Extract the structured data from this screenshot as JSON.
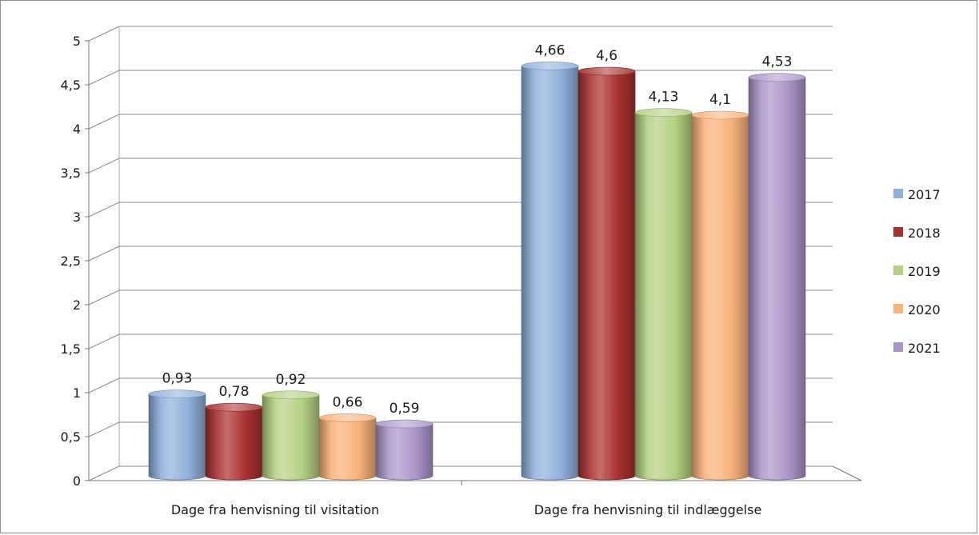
{
  "chart_data": {
    "type": "bar",
    "title": "",
    "xlabel": "",
    "ylabel": "",
    "categories": [
      "Dage fra henvisning til visitation",
      "Dage fra henvisning til indlæggelse"
    ],
    "series": [
      {
        "name": "2017",
        "values": [
          0.93,
          4.66
        ],
        "labels": [
          "0,93",
          "4,66"
        ],
        "color": "#8fb0dc"
      },
      {
        "name": "2018",
        "values": [
          0.78,
          4.6
        ],
        "labels": [
          "0,78",
          "4,6"
        ],
        "color": "#a8312f"
      },
      {
        "name": "2019",
        "values": [
          0.92,
          4.13
        ],
        "labels": [
          "0,92",
          "4,13"
        ],
        "color": "#b5d082"
      },
      {
        "name": "2020",
        "values": [
          0.66,
          4.1
        ],
        "labels": [
          "0,66",
          "4,1"
        ],
        "color": "#f9b27a"
      },
      {
        "name": "2021",
        "values": [
          0.59,
          4.53
        ],
        "labels": [
          "0,59",
          "4,53"
        ],
        "color": "#ab96c9"
      }
    ],
    "ylim": [
      0,
      5
    ],
    "yticks": [
      0,
      0.5,
      1,
      1.5,
      2,
      2.5,
      3,
      3.5,
      4,
      4.5,
      5
    ],
    "ytick_labels": [
      "0",
      "0,5",
      "1",
      "1,5",
      "2",
      "2,5",
      "3",
      "3,5",
      "4",
      "4,5",
      "5"
    ],
    "grid": true,
    "legend_position": "right",
    "style": "3d-cylinder"
  }
}
